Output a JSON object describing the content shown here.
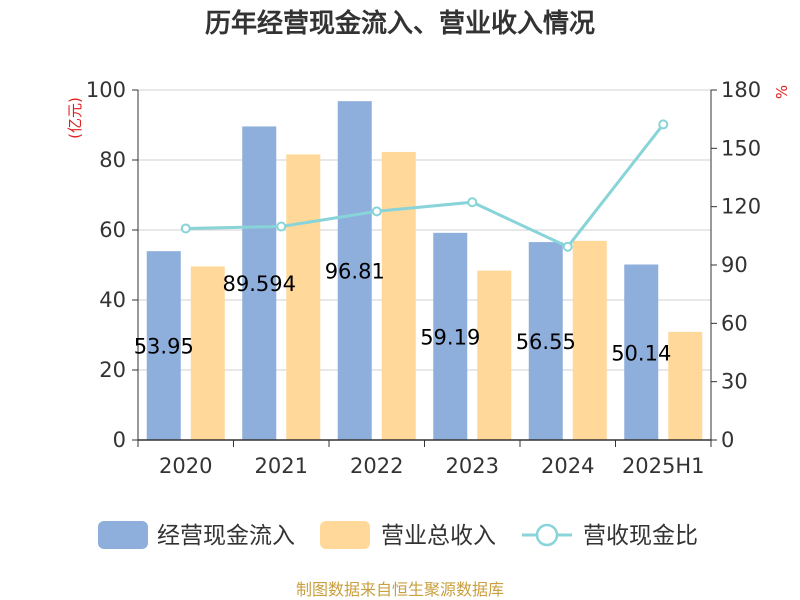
{
  "chart_data": {
    "type": "bar",
    "title": "历年经营现金流入、营业收入情况",
    "categories": [
      "2020",
      "2021",
      "2022",
      "2023",
      "2024",
      "2025H1"
    ],
    "y_left_unit": "(亿元)",
    "y_right_unit": "%",
    "ylim_left": [
      0,
      100
    ],
    "ylim_right": [
      0,
      180
    ],
    "yticks_left": [
      "0",
      "20",
      "40",
      "60",
      "80",
      "100"
    ],
    "yticks_right": [
      "0",
      "30",
      "60",
      "90",
      "120",
      "150",
      "180"
    ],
    "grid": true,
    "legend_position": "bottom",
    "series": [
      {
        "name": "经营现金流入",
        "type": "bar",
        "axis": "left",
        "color": "#8eaedb",
        "values": [
          53.95,
          89.59,
          96.81,
          59.19,
          56.55,
          50.14
        ],
        "labels": [
          "53.95",
          "89.594",
          "96.81",
          "59.19",
          "56.55",
          "50.14"
        ]
      },
      {
        "name": "营业总收入",
        "type": "bar",
        "axis": "left",
        "color": "#ffd89a",
        "values": [
          49.6,
          81.6,
          82.3,
          48.4,
          56.9,
          30.9
        ]
      },
      {
        "name": "营收现金比",
        "type": "line",
        "axis": "right",
        "color": "#88d4d8",
        "values": [
          108.8,
          109.8,
          117.6,
          122.3,
          99.4,
          162.3
        ]
      }
    ],
    "source": "制图数据来自恒生聚源数据库"
  }
}
